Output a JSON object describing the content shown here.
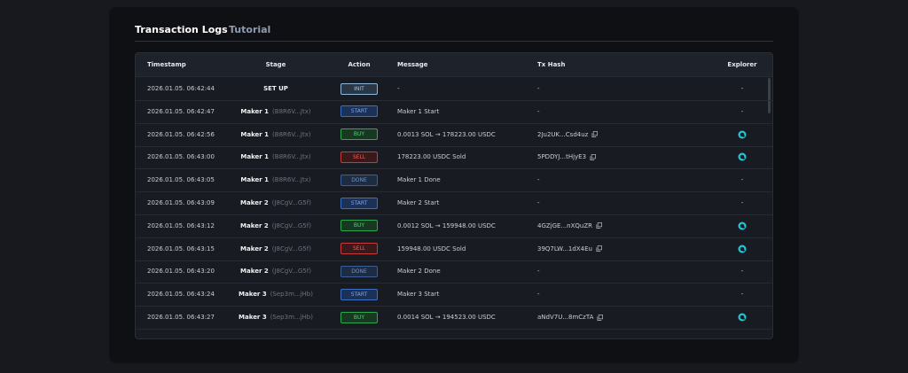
{
  "tabs": [
    "Transaction Logs",
    "Tutorial"
  ],
  "table": {
    "headers": [
      "Timestamp",
      "Stage",
      "Action",
      "Message",
      "Tx Hash",
      "Explorer"
    ],
    "rows": [
      {
        "timestamp": "2026.01.05. 06:42:44",
        "stage": "SET UP",
        "action": "INIT",
        "message": "-",
        "tx_hash": "-",
        "explorer": "-"
      },
      {
        "timestamp": "2026.01.05. 06:42:47",
        "stage": "Maker 1",
        "wallet": "(B8R6V...Jtx)",
        "action": "START",
        "message": "Maker 1 Start",
        "tx_hash": "-",
        "explorer": "-"
      },
      {
        "timestamp": "2026.01.05. 06:42:56",
        "stage": "Maker 1",
        "wallet": "(B8R6V...Jtx)",
        "action": "BUY",
        "message": "0.0013 SOL → 178223.00 USDC",
        "tx_hash": "2Ju2UK...Csd4uz"
      },
      {
        "timestamp": "2026.01.05. 06:43:00",
        "stage": "Maker 1",
        "wallet": "(B8R6V...Jtx)",
        "action": "SELL",
        "message": "178223.00 USDC Sold",
        "tx_hash": "5PDDYJ...tHjyE3"
      },
      {
        "timestamp": "2026.01.05. 06:43:05",
        "stage": "Maker 1",
        "wallet": "(B8R6V...Jtx)",
        "action": "DONE",
        "message": "Maker 1 Done",
        "tx_hash": "-",
        "explorer": "-"
      },
      {
        "timestamp": "2026.01.05. 06:43:09",
        "stage": "Maker 2",
        "wallet": "(J8CgV...G5f)",
        "action": "START",
        "message": "Maker 2 Start",
        "tx_hash": "-",
        "explorer": "-"
      },
      {
        "timestamp": "2026.01.05. 06:43:12",
        "stage": "Maker 2",
        "wallet": "(J8CgV...G5f)",
        "action": "BUY",
        "message": "0.0012 SOL → 159948.00 USDC",
        "tx_hash": "4GZjGE...nXQuZR"
      },
      {
        "timestamp": "2026.01.05. 06:43:15",
        "stage": "Maker 2",
        "wallet": "(J8CgV...G5f)",
        "action": "SELL",
        "message": "159948.00 USDC Sold",
        "tx_hash": "39Q7LW...1dX4Eu"
      },
      {
        "timestamp": "2026.01.05. 06:43:20",
        "stage": "Maker 2",
        "wallet": "(J8CgV...G5f)",
        "action": "DONE",
        "message": "Maker 2 Done",
        "tx_hash": "-",
        "explorer": "-"
      },
      {
        "timestamp": "2026.01.05. 06:43:24",
        "stage": "Maker 3",
        "wallet": "(Sep3m...jHb)",
        "action": "START",
        "message": "Maker 3 Start",
        "tx_hash": "-",
        "explorer": "-"
      },
      {
        "timestamp": "2026.01.05. 06:43:27",
        "stage": "Maker 3",
        "wallet": "(Sep3m...jHb)",
        "action": "BUY",
        "message": "0.0014 SOL → 194523.00 USDC",
        "tx_hash": "aNdV7U...8mCzTA"
      }
    ]
  }
}
